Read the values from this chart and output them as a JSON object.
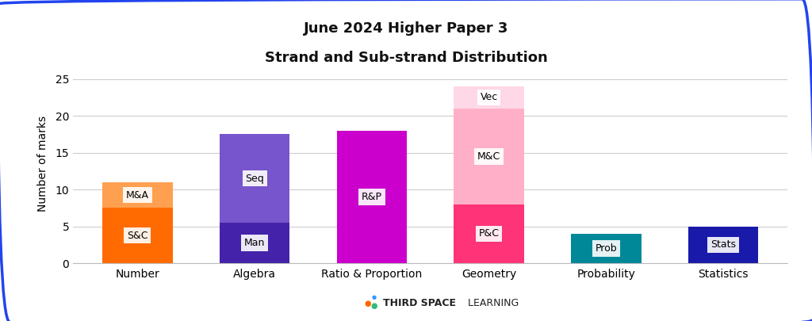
{
  "title_line1": "June 2024 Higher Paper 3",
  "title_line2": "Strand and Sub-strand Distribution",
  "ylabel": "Number of marks",
  "categories": [
    "Number",
    "Algebra",
    "Ratio & Proportion",
    "Geometry",
    "Probability",
    "Statistics"
  ],
  "segments": [
    [
      {
        "label": "S&C",
        "value": 7.5,
        "color": "#FF6B00"
      },
      {
        "label": "M&A",
        "value": 3.5,
        "color": "#FFA050"
      }
    ],
    [
      {
        "label": "Man",
        "value": 5.5,
        "color": "#4422AA"
      },
      {
        "label": "Seq",
        "value": 12.0,
        "color": "#7755CC"
      }
    ],
    [
      {
        "label": "R&P",
        "value": 18.0,
        "color": "#CC00CC"
      }
    ],
    [
      {
        "label": "P&C",
        "value": 8.0,
        "color": "#FF3377"
      },
      {
        "label": "M&C",
        "value": 13.0,
        "color": "#FFB0C8"
      },
      {
        "label": "Vec",
        "value": 3.0,
        "color": "#FFD8E8"
      }
    ],
    [
      {
        "label": "Prob",
        "value": 4.0,
        "color": "#008899"
      }
    ],
    [
      {
        "label": "Stats",
        "value": 5.0,
        "color": "#1A1AAA"
      }
    ]
  ],
  "ylim": [
    0,
    27
  ],
  "yticks": [
    0,
    5,
    10,
    15,
    20,
    25
  ],
  "bar_width": 0.6,
  "background_color": "#FFFFFF",
  "grid_color": "#CCCCCC",
  "title_fontsize": 13,
  "label_fontsize": 10,
  "tick_fontsize": 10,
  "annotation_fontsize": 9,
  "border_color": "#2244EE",
  "footer_bold": "THIRD SPACE",
  "footer_regular": " LEARNING",
  "tsl_dot1_color": "#FF6600",
  "tsl_dot2_color": "#3399FF",
  "tsl_dot3_color": "#33BB77"
}
